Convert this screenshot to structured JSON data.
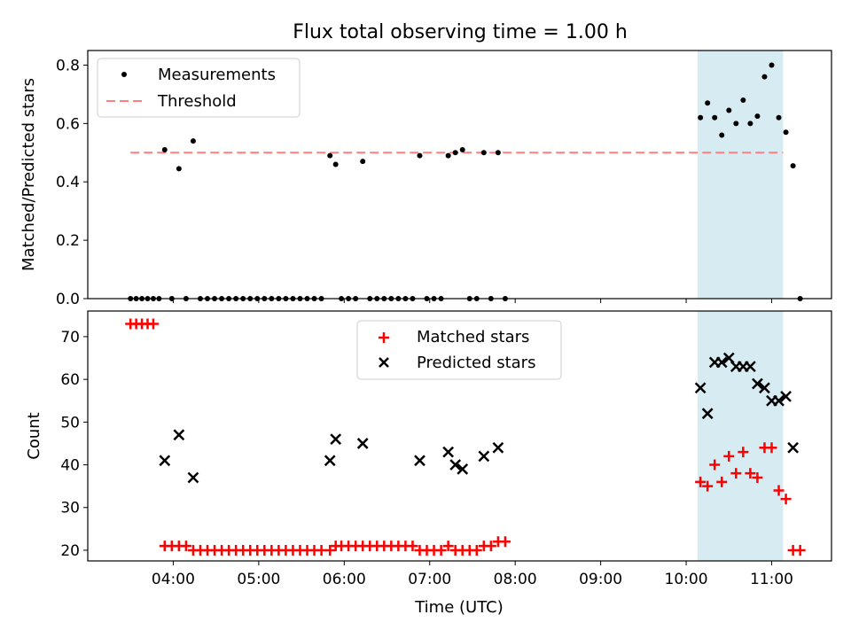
{
  "title": "Flux total observing time = 1.00 h",
  "chart_data": [
    {
      "type": "scatter",
      "ylabel": "Matched/Predicted stars",
      "ylim": [
        0,
        0.85
      ],
      "yticks": [
        "0.0",
        "0.2",
        "0.4",
        "0.6",
        "0.8"
      ],
      "threshold": 0.5,
      "shaded_interval": [
        "10:08",
        "11:08"
      ],
      "legend": {
        "position": "top-left",
        "entries": [
          "Measurements",
          "Threshold"
        ]
      },
      "series": [
        {
          "name": "Measurements",
          "color": "#000000",
          "points": [
            [
              "03:30",
              0.0
            ],
            [
              "03:34",
              0.0
            ],
            [
              "03:38",
              0.0
            ],
            [
              "03:42",
              0.0
            ],
            [
              "03:46",
              0.0
            ],
            [
              "03:50",
              0.0
            ],
            [
              "03:54",
              0.51
            ],
            [
              "03:59",
              0.0
            ],
            [
              "04:04",
              0.445
            ],
            [
              "04:09",
              0.0
            ],
            [
              "04:14",
              0.54
            ],
            [
              "04:19",
              0.0
            ],
            [
              "04:24",
              0.0
            ],
            [
              "04:29",
              0.0
            ],
            [
              "04:34",
              0.0
            ],
            [
              "04:39",
              0.0
            ],
            [
              "04:44",
              0.0
            ],
            [
              "04:49",
              0.0
            ],
            [
              "04:54",
              0.0
            ],
            [
              "04:59",
              0.0
            ],
            [
              "05:04",
              0.0
            ],
            [
              "05:09",
              0.0
            ],
            [
              "05:14",
              0.0
            ],
            [
              "05:19",
              0.0
            ],
            [
              "05:24",
              0.0
            ],
            [
              "05:29",
              0.0
            ],
            [
              "05:34",
              0.0
            ],
            [
              "05:39",
              0.0
            ],
            [
              "05:44",
              0.0
            ],
            [
              "05:50",
              0.49
            ],
            [
              "05:54",
              0.46
            ],
            [
              "05:58",
              0.0
            ],
            [
              "06:03",
              0.0
            ],
            [
              "06:08",
              0.0
            ],
            [
              "06:13",
              0.47
            ],
            [
              "06:18",
              0.0
            ],
            [
              "06:23",
              0.0
            ],
            [
              "06:28",
              0.0
            ],
            [
              "06:33",
              0.0
            ],
            [
              "06:38",
              0.0
            ],
            [
              "06:43",
              0.0
            ],
            [
              "06:48",
              0.0
            ],
            [
              "06:53",
              0.49
            ],
            [
              "06:58",
              0.0
            ],
            [
              "07:03",
              0.0
            ],
            [
              "07:08",
              0.0
            ],
            [
              "07:13",
              0.49
            ],
            [
              "07:18",
              0.5
            ],
            [
              "07:23",
              0.51
            ],
            [
              "07:28",
              0.0
            ],
            [
              "07:33",
              0.0
            ],
            [
              "07:38",
              0.5
            ],
            [
              "07:43",
              0.0
            ],
            [
              "07:48",
              0.5
            ],
            [
              "07:53",
              0.0
            ],
            [
              "10:10",
              0.62
            ],
            [
              "10:15",
              0.67
            ],
            [
              "10:20",
              0.62
            ],
            [
              "10:25",
              0.56
            ],
            [
              "10:30",
              0.645
            ],
            [
              "10:35",
              0.6
            ],
            [
              "10:40",
              0.68
            ],
            [
              "10:45",
              0.6
            ],
            [
              "10:50",
              0.625
            ],
            [
              "10:55",
              0.76
            ],
            [
              "11:00",
              0.8
            ],
            [
              "11:05",
              0.62
            ],
            [
              "11:10",
              0.57
            ],
            [
              "11:15",
              0.455
            ],
            [
              "11:20",
              0.0
            ]
          ]
        },
        {
          "name": "Threshold",
          "color": "#ff7f7f",
          "from": "03:30",
          "to": "11:08",
          "value": 0.5
        }
      ]
    },
    {
      "type": "scatter",
      "xlabel": "Time (UTC)",
      "ylabel": "Count",
      "ylim": [
        17.5,
        76
      ],
      "yticks": [
        "20",
        "30",
        "40",
        "50",
        "60",
        "70"
      ],
      "xticks": [
        "04:00",
        "05:00",
        "06:00",
        "07:00",
        "08:00",
        "09:00",
        "10:00",
        "11:00"
      ],
      "shaded_interval": [
        "10:08",
        "11:08"
      ],
      "legend": {
        "position": "top-center",
        "entries": [
          "Matched stars",
          "Predicted stars"
        ]
      },
      "series": [
        {
          "name": "Matched stars",
          "color": "#ff0000",
          "marker": "plus",
          "points": [
            [
              "03:30",
              73
            ],
            [
              "03:34",
              73
            ],
            [
              "03:38",
              73
            ],
            [
              "03:42",
              73
            ],
            [
              "03:46",
              73
            ],
            [
              "03:54",
              21
            ],
            [
              "03:59",
              21
            ],
            [
              "04:04",
              21
            ],
            [
              "04:09",
              21
            ],
            [
              "04:14",
              20
            ],
            [
              "04:19",
              20
            ],
            [
              "04:24",
              20
            ],
            [
              "04:29",
              20
            ],
            [
              "04:34",
              20
            ],
            [
              "04:39",
              20
            ],
            [
              "04:44",
              20
            ],
            [
              "04:49",
              20
            ],
            [
              "04:54",
              20
            ],
            [
              "04:59",
              20
            ],
            [
              "05:04",
              20
            ],
            [
              "05:09",
              20
            ],
            [
              "05:14",
              20
            ],
            [
              "05:19",
              20
            ],
            [
              "05:24",
              20
            ],
            [
              "05:29",
              20
            ],
            [
              "05:34",
              20
            ],
            [
              "05:39",
              20
            ],
            [
              "05:44",
              20
            ],
            [
              "05:50",
              20
            ],
            [
              "05:54",
              21
            ],
            [
              "05:58",
              21
            ],
            [
              "06:03",
              21
            ],
            [
              "06:08",
              21
            ],
            [
              "06:13",
              21
            ],
            [
              "06:18",
              21
            ],
            [
              "06:23",
              21
            ],
            [
              "06:28",
              21
            ],
            [
              "06:33",
              21
            ],
            [
              "06:38",
              21
            ],
            [
              "06:43",
              21
            ],
            [
              "06:48",
              21
            ],
            [
              "06:53",
              20
            ],
            [
              "06:58",
              20
            ],
            [
              "07:03",
              20
            ],
            [
              "07:08",
              20
            ],
            [
              "07:13",
              21
            ],
            [
              "07:18",
              20
            ],
            [
              "07:23",
              20
            ],
            [
              "07:28",
              20
            ],
            [
              "07:33",
              20
            ],
            [
              "07:38",
              21
            ],
            [
              "07:43",
              21
            ],
            [
              "07:48",
              22
            ],
            [
              "07:53",
              22
            ],
            [
              "10:10",
              36
            ],
            [
              "10:15",
              35
            ],
            [
              "10:20",
              40
            ],
            [
              "10:25",
              36
            ],
            [
              "10:30",
              42
            ],
            [
              "10:35",
              38
            ],
            [
              "10:40",
              43
            ],
            [
              "10:45",
              38
            ],
            [
              "10:50",
              37
            ],
            [
              "10:55",
              44
            ],
            [
              "11:00",
              44
            ],
            [
              "11:05",
              34
            ],
            [
              "11:10",
              32
            ],
            [
              "11:15",
              20
            ],
            [
              "11:20",
              20
            ]
          ]
        },
        {
          "name": "Predicted stars",
          "color": "#000000",
          "marker": "x",
          "points": [
            [
              "03:54",
              41
            ],
            [
              "04:04",
              47
            ],
            [
              "04:14",
              37
            ],
            [
              "05:50",
              41
            ],
            [
              "05:54",
              46
            ],
            [
              "06:13",
              45
            ],
            [
              "06:53",
              41
            ],
            [
              "07:13",
              43
            ],
            [
              "07:18",
              40
            ],
            [
              "07:23",
              39
            ],
            [
              "07:38",
              42
            ],
            [
              "07:48",
              44
            ],
            [
              "10:10",
              58
            ],
            [
              "10:15",
              52
            ],
            [
              "10:20",
              64
            ],
            [
              "10:25",
              64
            ],
            [
              "10:30",
              65
            ],
            [
              "10:35",
              63
            ],
            [
              "10:40",
              63
            ],
            [
              "10:45",
              63
            ],
            [
              "10:50",
              59
            ],
            [
              "10:55",
              58
            ],
            [
              "11:00",
              55
            ],
            [
              "11:05",
              55
            ],
            [
              "11:10",
              56
            ],
            [
              "11:15",
              44
            ]
          ]
        }
      ]
    }
  ]
}
